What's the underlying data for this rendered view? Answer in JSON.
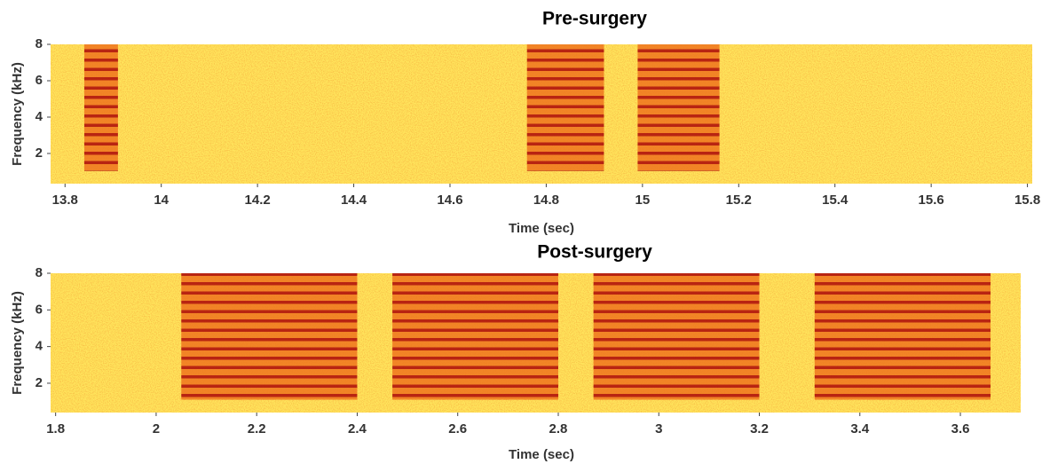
{
  "chart_data": [
    {
      "type": "spectrogram",
      "title": "Pre-surgery",
      "xlabel": "Time (sec)",
      "ylabel": "Frequency (kHz)",
      "xlim": [
        13.77,
        15.81
      ],
      "ylim": [
        0.34,
        8
      ],
      "xticks": [
        13.8,
        14,
        14.2,
        14.4,
        14.6,
        14.8,
        15,
        15.2,
        15.4,
        15.6,
        15.8
      ],
      "yticks": [
        2,
        4,
        6,
        8
      ],
      "calls": [
        {
          "start": 13.84,
          "end": 13.91
        },
        {
          "start": 14.76,
          "end": 14.92
        },
        {
          "start": 14.99,
          "end": 15.16
        }
      ]
    },
    {
      "type": "spectrogram",
      "title": "Post-surgery",
      "xlabel": "Time (sec)",
      "ylabel": "Frequency (kHz)",
      "xlim": [
        1.79,
        3.72
      ],
      "ylim": [
        0.4,
        8
      ],
      "xticks": [
        1.8,
        2,
        2.2,
        2.4,
        2.6,
        2.8,
        3,
        3.2,
        3.4,
        3.6
      ],
      "yticks": [
        2,
        4,
        6,
        8
      ],
      "calls": [
        {
          "start": 2.05,
          "end": 2.4
        },
        {
          "start": 2.47,
          "end": 2.8
        },
        {
          "start": 2.87,
          "end": 3.2
        },
        {
          "start": 3.31,
          "end": 3.66
        }
      ]
    }
  ]
}
